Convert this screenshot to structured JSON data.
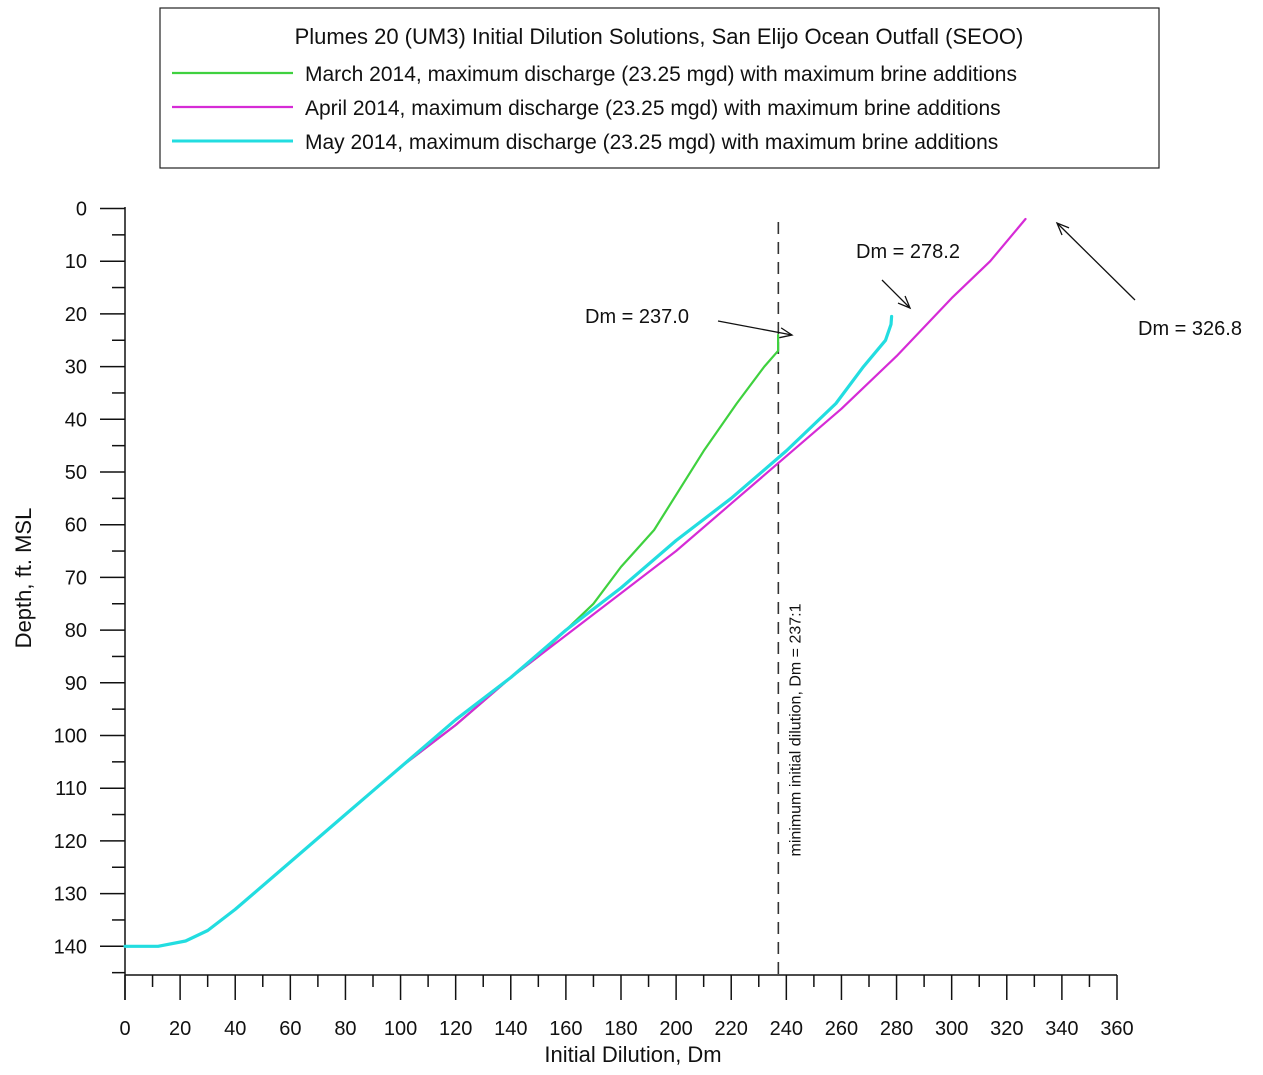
{
  "chart_data": {
    "type": "line",
    "legend": {
      "title": "Plumes 20 (UM3) Initial Dilution Solutions, San Elijo Ocean Outfall (SEOO)",
      "placement": "top"
    },
    "xlabel": "Initial Dilution, Dm",
    "ylabel": "Depth, ft. MSL",
    "xlim": [
      0,
      360
    ],
    "ylim": [
      0,
      145
    ],
    "y_inverted": true,
    "x_ticks": [
      0,
      20,
      40,
      60,
      80,
      100,
      120,
      140,
      160,
      180,
      200,
      220,
      240,
      260,
      280,
      300,
      320,
      340,
      360
    ],
    "y_ticks": [
      0,
      10,
      20,
      30,
      40,
      50,
      60,
      70,
      80,
      90,
      100,
      110,
      120,
      130,
      140
    ],
    "grid": false,
    "series": [
      {
        "name": "March 2014, maximum discharge (23.25 mgd) with maximum brine additions",
        "color": "#3fd13f",
        "points": [
          [
            0,
            140
          ],
          [
            12,
            140
          ],
          [
            22,
            139
          ],
          [
            30,
            137
          ],
          [
            40,
            133
          ],
          [
            60,
            124
          ],
          [
            80,
            115
          ],
          [
            100,
            106
          ],
          [
            120,
            98
          ],
          [
            140,
            89
          ],
          [
            150,
            85
          ],
          [
            160,
            80
          ],
          [
            170,
            75
          ],
          [
            180,
            68
          ],
          [
            192,
            61
          ],
          [
            210,
            46
          ],
          [
            222,
            37
          ],
          [
            232,
            30
          ],
          [
            237,
            27
          ],
          [
            237,
            24
          ]
        ]
      },
      {
        "name": "April 2014, maximum discharge (23.25 mgd) with maximum brine additions",
        "color": "#d62bd6",
        "points": [
          [
            0,
            140
          ],
          [
            12,
            140
          ],
          [
            22,
            139
          ],
          [
            30,
            137
          ],
          [
            40,
            133
          ],
          [
            60,
            124
          ],
          [
            80,
            115
          ],
          [
            100,
            106
          ],
          [
            120,
            98
          ],
          [
            140,
            89
          ],
          [
            160,
            81
          ],
          [
            180,
            73
          ],
          [
            200,
            65
          ],
          [
            220,
            56
          ],
          [
            240,
            47
          ],
          [
            260,
            38
          ],
          [
            280,
            28
          ],
          [
            300,
            17
          ],
          [
            314,
            10
          ],
          [
            326.8,
            2
          ]
        ]
      },
      {
        "name": "May 2014, maximum discharge (23.25 mgd) with maximum brine additions",
        "color": "#22dde0",
        "points": [
          [
            0,
            140
          ],
          [
            12,
            140
          ],
          [
            22,
            139
          ],
          [
            30,
            137
          ],
          [
            40,
            133
          ],
          [
            60,
            124
          ],
          [
            80,
            115
          ],
          [
            100,
            106
          ],
          [
            120,
            97
          ],
          [
            140,
            89
          ],
          [
            160,
            80
          ],
          [
            180,
            72
          ],
          [
            200,
            63
          ],
          [
            220,
            55
          ],
          [
            240,
            46
          ],
          [
            258,
            37
          ],
          [
            268,
            30
          ],
          [
            276,
            25
          ],
          [
            278,
            22
          ],
          [
            278.2,
            20.5
          ]
        ]
      }
    ],
    "reference_line": {
      "x": 237.1,
      "label": "minimum initial dilution, Dm = 237:1",
      "style": "dashed"
    },
    "annotations": [
      {
        "text": "Dm = 237.0",
        "x": 237.0,
        "y": 24
      },
      {
        "text": "Dm = 278.2",
        "x": 278.2,
        "y": 20.5
      },
      {
        "text": "Dm = 326.8",
        "x": 326.8,
        "y": 2
      }
    ]
  }
}
